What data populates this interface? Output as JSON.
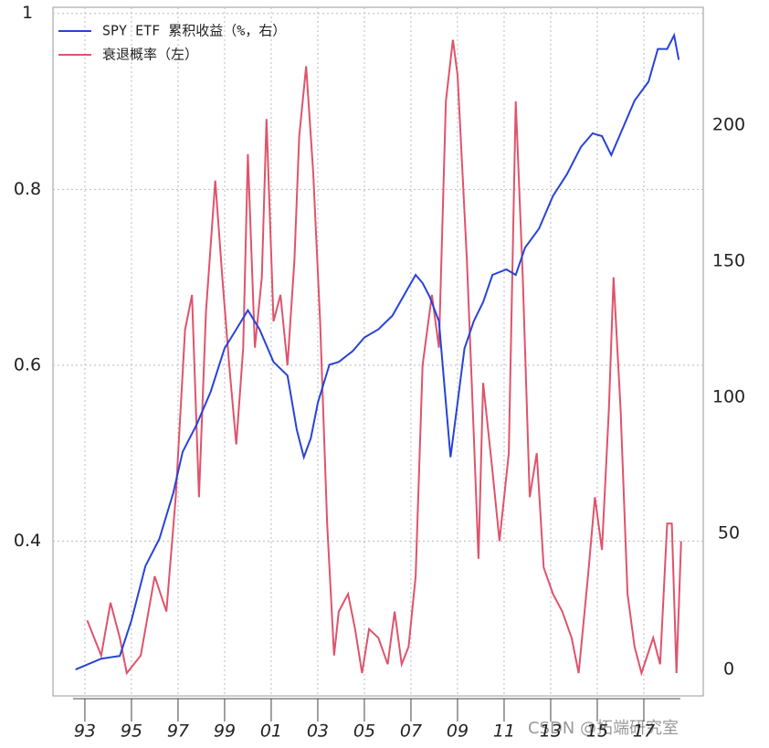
{
  "chart_data": {
    "type": "line",
    "xlim": [
      1991.63,
      2019.55
    ],
    "ylim": [
      0.224,
      1.007
    ],
    "y2lim": [
      -9.7,
      243.3
    ],
    "yticks": [
      0.4,
      0.6,
      0.8,
      1.0
    ],
    "y2ticks": [
      0,
      50,
      100,
      150,
      200
    ],
    "xticks": [
      {
        "value": 1993,
        "label": "93"
      },
      {
        "value": 1995,
        "label": "95"
      },
      {
        "value": 1997,
        "label": "97"
      },
      {
        "value": 1999,
        "label": "99"
      },
      {
        "value": 2001,
        "label": "01"
      },
      {
        "value": 2003,
        "label": "03"
      },
      {
        "value": 2005,
        "label": "05"
      },
      {
        "value": 2007,
        "label": "07"
      },
      {
        "value": 2009,
        "label": "09"
      },
      {
        "value": 2011,
        "label": "11"
      },
      {
        "value": 2013,
        "label": "13"
      },
      {
        "value": 2015,
        "label": "15"
      },
      {
        "value": 2017,
        "label": "17"
      }
    ],
    "grid": true,
    "legend": "top-left",
    "watermark": "CSDN @拓端研究室",
    "series": [
      {
        "name": "SPY ETF 累积收益（%，右）",
        "color": "#2743d8",
        "axis": "y2",
        "x": [
          1992.6,
          1993.7,
          1994.5,
          1995.0,
          1995.6,
          1996.2,
          1996.8,
          1997.2,
          1997.8,
          1998.4,
          1999.0,
          1999.5,
          2000.0,
          2000.5,
          2001.1,
          2001.7,
          2002.1,
          2002.4,
          2002.7,
          2003.0,
          2003.5,
          2003.9,
          2004.5,
          2005.0,
          2005.6,
          2006.2,
          2006.8,
          2007.2,
          2007.5,
          2007.8,
          2008.2,
          2008.5,
          2008.7,
          2009.0,
          2009.3,
          2009.7,
          2010.1,
          2010.5,
          2011.1,
          2011.5,
          2011.9,
          2012.5,
          2013.1,
          2013.7,
          2014.3,
          2014.8,
          2015.2,
          2015.6,
          2016.0,
          2016.6,
          2017.2,
          2017.6,
          2018.0,
          2018.3,
          2018.5
        ],
        "values": [
          0,
          4,
          5,
          18,
          38,
          48,
          65,
          80,
          90,
          102,
          118,
          125,
          132,
          125,
          113,
          108,
          88,
          78,
          85,
          98,
          112,
          113,
          117,
          122,
          125,
          130,
          139,
          145,
          142,
          137,
          128,
          98,
          78,
          98,
          118,
          128,
          135,
          145,
          147,
          145,
          155,
          162,
          174,
          182,
          192,
          197,
          196,
          189,
          197,
          209,
          216,
          228,
          228,
          233,
          224
        ]
      },
      {
        "name": "衰退概率（左）",
        "color": "#df536b",
        "axis": "y",
        "x": [
          1993.1,
          1993.7,
          1994.1,
          1994.5,
          1994.8,
          1995.4,
          1996.0,
          1996.5,
          1996.9,
          1997.3,
          1997.6,
          1997.9,
          1998.2,
          1998.6,
          1998.9,
          1999.2,
          1999.5,
          1999.8,
          2000.0,
          2000.3,
          2000.6,
          2000.8,
          2001.1,
          2001.4,
          2001.7,
          2002.0,
          2002.2,
          2002.5,
          2002.8,
          2003.1,
          2003.4,
          2003.7,
          2003.9,
          2004.3,
          2004.6,
          2004.9,
          2005.2,
          2005.6,
          2006.0,
          2006.3,
          2006.6,
          2006.9,
          2007.2,
          2007.5,
          2007.9,
          2008.2,
          2008.5,
          2008.8,
          2009.0,
          2009.4,
          2009.7,
          2009.9,
          2010.1,
          2010.5,
          2010.8,
          2011.2,
          2011.5,
          2011.8,
          2012.1,
          2012.4,
          2012.7,
          2013.1,
          2013.5,
          2013.9,
          2014.2,
          2014.6,
          2014.9,
          2015.2,
          2015.5,
          2015.7,
          2016.0,
          2016.3,
          2016.6,
          2016.9,
          2017.4,
          2017.7,
          2018.0,
          2018.2,
          2018.4,
          2018.6
        ],
        "values": [
          0.31,
          0.27,
          0.33,
          0.29,
          0.25,
          0.27,
          0.36,
          0.32,
          0.45,
          0.64,
          0.68,
          0.45,
          0.66,
          0.81,
          0.7,
          0.6,
          0.51,
          0.62,
          0.84,
          0.62,
          0.7,
          0.88,
          0.65,
          0.68,
          0.6,
          0.72,
          0.86,
          0.94,
          0.82,
          0.65,
          0.42,
          0.27,
          0.32,
          0.34,
          0.3,
          0.25,
          0.3,
          0.29,
          0.26,
          0.32,
          0.26,
          0.28,
          0.36,
          0.6,
          0.68,
          0.62,
          0.9,
          0.97,
          0.93,
          0.72,
          0.52,
          0.38,
          0.58,
          0.48,
          0.4,
          0.5,
          0.9,
          0.7,
          0.45,
          0.5,
          0.37,
          0.34,
          0.32,
          0.29,
          0.25,
          0.36,
          0.45,
          0.39,
          0.55,
          0.7,
          0.55,
          0.34,
          0.28,
          0.25,
          0.29,
          0.26,
          0.42,
          0.42,
          0.25,
          0.4
        ]
      }
    ]
  }
}
